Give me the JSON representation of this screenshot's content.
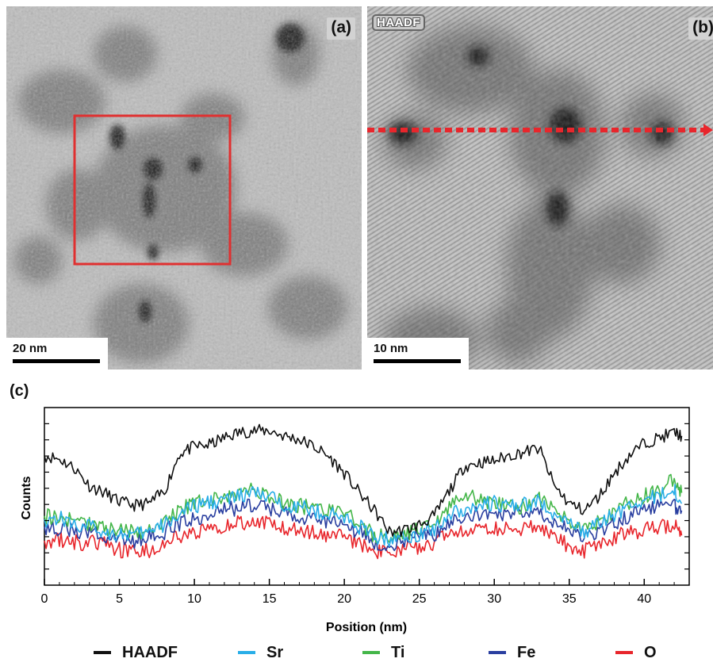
{
  "panels": {
    "a": {
      "letter": "(a)",
      "scale_bar": "20 nm"
    },
    "b": {
      "letter": "(b)",
      "tag": "HAADF",
      "scale_bar": "10 nm"
    },
    "c": {
      "letter": "(c)"
    }
  },
  "colors": {
    "HAADF": "#111111",
    "Sr": "#29aee8",
    "Ti": "#44b649",
    "Fe": "#2a3fa0",
    "O": "#e8262c",
    "selection_box": "#e03030"
  },
  "chart_data": {
    "type": "line",
    "xlabel": "Position (nm)",
    "ylabel": "Counts",
    "xlim": [
      0,
      43
    ],
    "ylim": [
      0,
      1
    ],
    "x_ticks": [
      0,
      5,
      10,
      15,
      20,
      25,
      30,
      35,
      40
    ],
    "x_tick_labels": [
      "0",
      "5",
      "10",
      "15",
      "20",
      "25",
      "30",
      "35",
      "40"
    ],
    "y_tick_labels_shown": false,
    "legend_position": "bottom",
    "series": [
      {
        "name": "HAADF",
        "color": "#111111",
        "x": [
          0,
          1,
          2,
          3,
          4,
          5,
          6,
          7,
          8,
          9,
          10,
          11,
          12,
          13,
          14,
          15,
          16,
          17,
          18,
          19,
          20,
          21,
          22,
          23,
          24,
          25,
          26,
          27,
          28,
          29,
          30,
          31,
          32,
          33,
          34,
          35,
          36,
          37,
          38,
          39,
          40,
          41,
          42,
          42.5
        ],
        "y": [
          0.73,
          0.71,
          0.66,
          0.56,
          0.52,
          0.47,
          0.45,
          0.46,
          0.53,
          0.74,
          0.78,
          0.79,
          0.83,
          0.86,
          0.87,
          0.87,
          0.84,
          0.82,
          0.78,
          0.72,
          0.63,
          0.52,
          0.42,
          0.3,
          0.31,
          0.34,
          0.39,
          0.53,
          0.67,
          0.69,
          0.7,
          0.73,
          0.75,
          0.77,
          0.56,
          0.46,
          0.42,
          0.5,
          0.63,
          0.73,
          0.8,
          0.83,
          0.86,
          0.84
        ]
      },
      {
        "name": "Sr",
        "color": "#29aee8",
        "x": [
          0,
          1,
          2,
          3,
          4,
          5,
          6,
          7,
          8,
          9,
          10,
          11,
          12,
          13,
          14,
          15,
          16,
          17,
          18,
          19,
          20,
          21,
          22,
          23,
          24,
          25,
          26,
          27,
          28,
          29,
          30,
          31,
          32,
          33,
          34,
          35,
          36,
          37,
          38,
          39,
          40,
          41,
          42,
          42.5
        ],
        "y": [
          0.37,
          0.38,
          0.34,
          0.33,
          0.3,
          0.29,
          0.28,
          0.3,
          0.34,
          0.4,
          0.44,
          0.47,
          0.48,
          0.5,
          0.52,
          0.49,
          0.46,
          0.44,
          0.42,
          0.4,
          0.38,
          0.33,
          0.27,
          0.26,
          0.27,
          0.29,
          0.32,
          0.4,
          0.43,
          0.45,
          0.46,
          0.44,
          0.45,
          0.47,
          0.4,
          0.34,
          0.3,
          0.34,
          0.4,
          0.44,
          0.48,
          0.5,
          0.54,
          0.46
        ]
      },
      {
        "name": "Ti",
        "color": "#44b649",
        "x": [
          0,
          1,
          2,
          3,
          4,
          5,
          6,
          7,
          8,
          9,
          10,
          11,
          12,
          13,
          14,
          15,
          16,
          17,
          18,
          19,
          20,
          21,
          22,
          23,
          24,
          25,
          26,
          27,
          28,
          29,
          30,
          31,
          32,
          33,
          34,
          35,
          36,
          37,
          38,
          39,
          40,
          41,
          42,
          42.5
        ],
        "y": [
          0.39,
          0.38,
          0.36,
          0.35,
          0.32,
          0.31,
          0.3,
          0.31,
          0.36,
          0.42,
          0.46,
          0.48,
          0.49,
          0.52,
          0.54,
          0.5,
          0.46,
          0.45,
          0.43,
          0.42,
          0.4,
          0.35,
          0.28,
          0.27,
          0.29,
          0.31,
          0.34,
          0.44,
          0.52,
          0.48,
          0.46,
          0.45,
          0.44,
          0.48,
          0.43,
          0.36,
          0.32,
          0.36,
          0.42,
          0.47,
          0.5,
          0.53,
          0.6,
          0.52
        ]
      },
      {
        "name": "Fe",
        "color": "#2a3fa0",
        "x": [
          0,
          1,
          2,
          3,
          4,
          5,
          6,
          7,
          8,
          9,
          10,
          11,
          12,
          13,
          14,
          15,
          16,
          17,
          18,
          19,
          20,
          21,
          22,
          23,
          24,
          25,
          26,
          27,
          28,
          29,
          30,
          31,
          32,
          33,
          34,
          35,
          36,
          37,
          38,
          39,
          40,
          41,
          42,
          42.5
        ],
        "y": [
          0.33,
          0.32,
          0.3,
          0.3,
          0.28,
          0.26,
          0.25,
          0.27,
          0.3,
          0.35,
          0.38,
          0.4,
          0.42,
          0.44,
          0.45,
          0.43,
          0.4,
          0.39,
          0.37,
          0.35,
          0.34,
          0.3,
          0.24,
          0.23,
          0.25,
          0.27,
          0.29,
          0.35,
          0.39,
          0.4,
          0.41,
          0.4,
          0.41,
          0.42,
          0.36,
          0.31,
          0.27,
          0.3,
          0.35,
          0.39,
          0.42,
          0.44,
          0.45,
          0.42
        ]
      },
      {
        "name": "O",
        "color": "#e8262c",
        "x": [
          0,
          1,
          2,
          3,
          4,
          5,
          6,
          7,
          8,
          9,
          10,
          11,
          12,
          13,
          14,
          15,
          16,
          17,
          18,
          19,
          20,
          21,
          22,
          23,
          24,
          25,
          26,
          27,
          28,
          29,
          30,
          31,
          32,
          33,
          34,
          35,
          36,
          37,
          38,
          39,
          40,
          41,
          42,
          42.5
        ],
        "y": [
          0.25,
          0.26,
          0.24,
          0.24,
          0.23,
          0.2,
          0.19,
          0.2,
          0.23,
          0.28,
          0.3,
          0.32,
          0.33,
          0.35,
          0.36,
          0.34,
          0.32,
          0.31,
          0.3,
          0.28,
          0.27,
          0.24,
          0.19,
          0.19,
          0.2,
          0.22,
          0.24,
          0.28,
          0.3,
          0.31,
          0.32,
          0.31,
          0.32,
          0.33,
          0.28,
          0.22,
          0.19,
          0.22,
          0.27,
          0.3,
          0.31,
          0.33,
          0.34,
          0.28
        ]
      }
    ]
  }
}
